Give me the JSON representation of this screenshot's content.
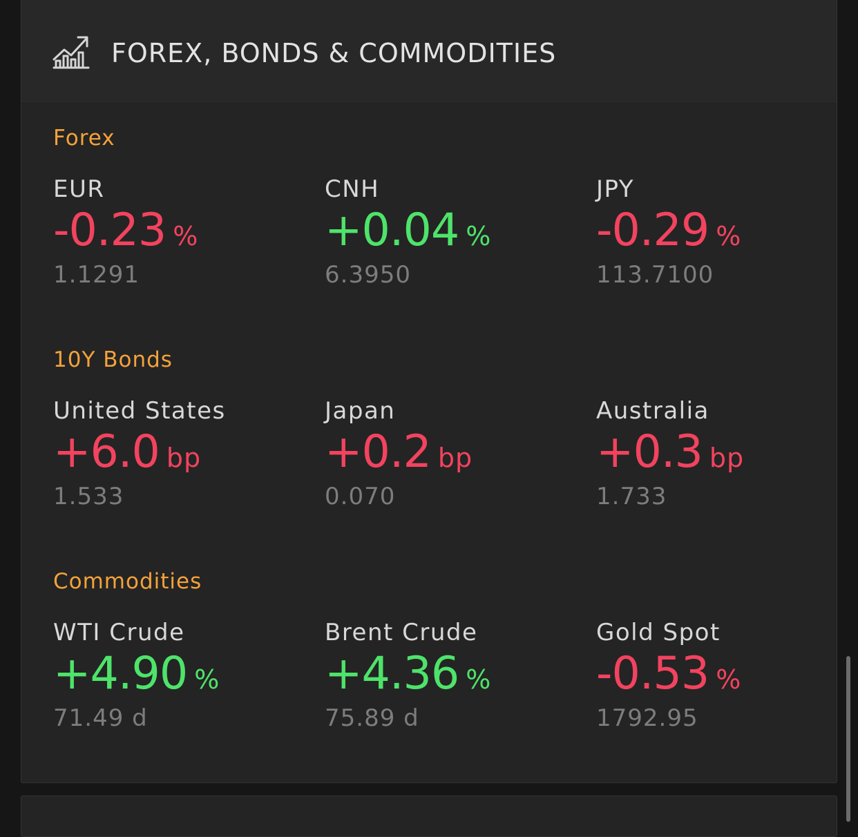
{
  "header": {
    "title": "FOREX, BONDS & COMMODITIES",
    "icon": "chart-growth-icon"
  },
  "colors": {
    "positive": "#4ee36a",
    "negative": "#f2435f",
    "section": "#f5a23a"
  },
  "sections": [
    {
      "title": "Forex",
      "items": [
        {
          "name": "EUR",
          "change": "-0.23",
          "unit": "%",
          "price": "1.1291",
          "direction": "negative"
        },
        {
          "name": "CNH",
          "change": "+0.04",
          "unit": "%",
          "price": "6.3950",
          "direction": "positive"
        },
        {
          "name": "JPY",
          "change": "-0.29",
          "unit": "%",
          "price": "113.7100",
          "direction": "negative"
        }
      ]
    },
    {
      "title": "10Y Bonds",
      "items": [
        {
          "name": "United States",
          "change": "+6.0",
          "unit": "bp",
          "price": "1.533",
          "direction": "negative"
        },
        {
          "name": "Japan",
          "change": "+0.2",
          "unit": "bp",
          "price": "0.070",
          "direction": "negative"
        },
        {
          "name": "Australia",
          "change": "+0.3",
          "unit": "bp",
          "price": "1.733",
          "direction": "negative"
        }
      ]
    },
    {
      "title": "Commodities",
      "items": [
        {
          "name": "WTI Crude",
          "change": "+4.90",
          "unit": "%",
          "price": "71.49 d",
          "direction": "positive"
        },
        {
          "name": "Brent Crude",
          "change": "+4.36",
          "unit": "%",
          "price": "75.89 d",
          "direction": "positive"
        },
        {
          "name": "Gold Spot",
          "change": "-0.53",
          "unit": "%",
          "price": "1792.95",
          "direction": "negative"
        }
      ]
    }
  ]
}
